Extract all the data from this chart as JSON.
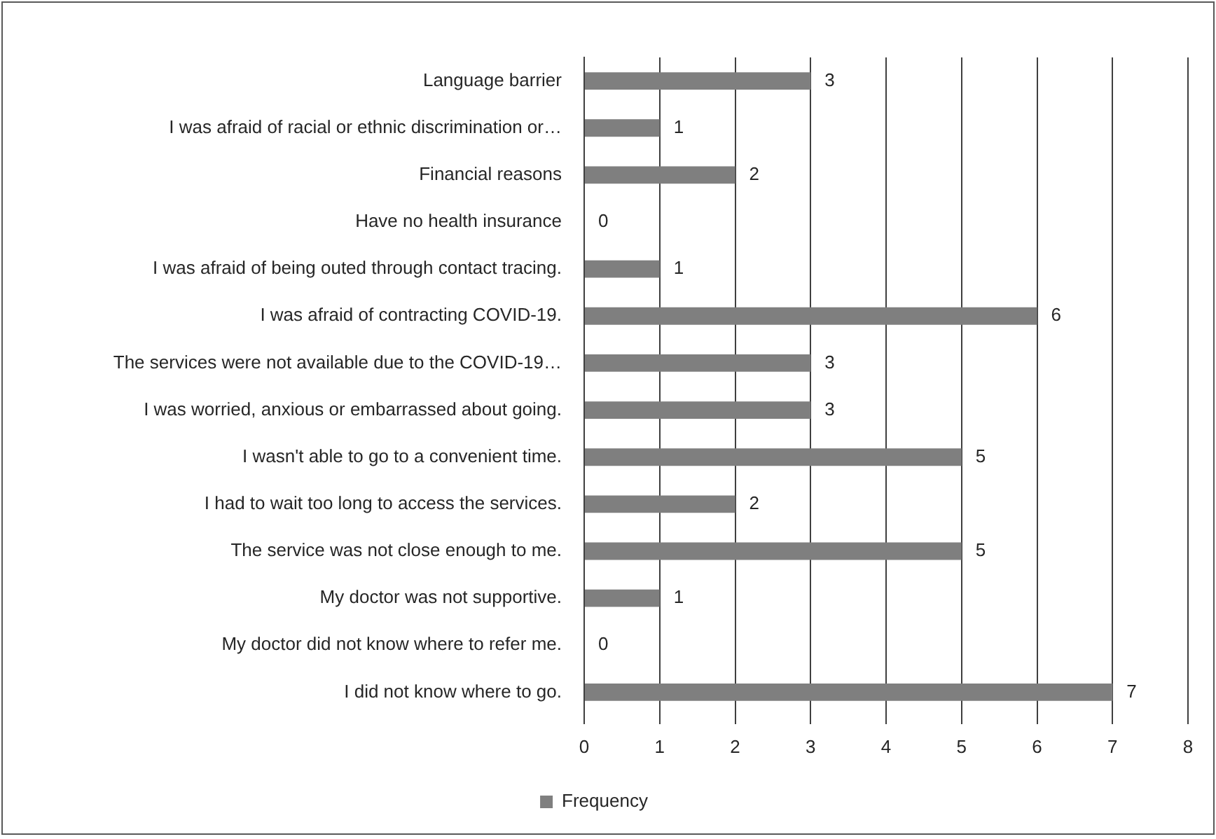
{
  "chart_data": {
    "type": "bar",
    "orientation": "horizontal",
    "categories": [
      "Language barrier",
      "I was afraid of racial or ethnic discrimination or…",
      "Financial reasons",
      "Have no health insurance",
      "I was afraid of being outed through contact tracing.",
      "I was afraid of contracting COVID-19.",
      "The services were not available due to the COVID-19…",
      "I was worried, anxious or embarrassed about going.",
      "I wasn't able to go to a convenient time.",
      "I had to wait too long to access the services.",
      "The service was not close enough to me.",
      "My doctor was not supportive.",
      "My doctor did not know where to refer me.",
      "I did not know where to go."
    ],
    "series": [
      {
        "name": "Frequency",
        "color": "#7f7f7f",
        "values": [
          3,
          1,
          2,
          0,
          1,
          6,
          3,
          3,
          5,
          2,
          5,
          1,
          0,
          7
        ]
      }
    ],
    "xlim": [
      0,
      8
    ],
    "xticks": [
      0,
      1,
      2,
      3,
      4,
      5,
      6,
      7,
      8
    ],
    "grid": "x",
    "legend": "bottom",
    "data_labels": true
  }
}
